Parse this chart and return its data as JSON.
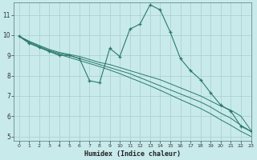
{
  "xlabel": "Humidex (Indice chaleur)",
  "background_color": "#c8eaeb",
  "grid_color": "#a8cece",
  "line_color": "#2a7a6a",
  "xlim": [
    -0.5,
    23
  ],
  "ylim": [
    4.8,
    11.6
  ],
  "yticks": [
    5,
    6,
    7,
    8,
    9,
    10,
    11
  ],
  "xticks": [
    0,
    1,
    2,
    3,
    4,
    5,
    6,
    7,
    8,
    9,
    10,
    11,
    12,
    13,
    14,
    15,
    16,
    17,
    18,
    19,
    20,
    21,
    22,
    23
  ],
  "series_main": {
    "x": [
      0,
      1,
      2,
      3,
      4,
      5,
      6,
      7,
      8,
      9,
      10,
      11,
      12,
      13,
      14,
      15,
      16,
      17,
      18,
      19,
      20,
      21,
      22,
      23
    ],
    "y": [
      9.95,
      9.6,
      9.4,
      9.2,
      9.0,
      9.0,
      8.85,
      7.75,
      7.65,
      9.35,
      8.95,
      10.3,
      10.55,
      11.5,
      11.25,
      10.15,
      8.85,
      8.25,
      7.8,
      7.15,
      6.55,
      6.25,
      5.5,
      5.25
    ]
  },
  "series_smooth": [
    {
      "x": [
        0,
        1,
        2,
        3,
        4,
        5,
        6,
        7,
        8,
        9,
        10,
        11,
        12,
        13,
        14,
        15,
        16,
        17,
        18,
        19,
        20,
        21,
        22,
        23
      ],
      "y": [
        9.95,
        9.7,
        9.5,
        9.3,
        9.15,
        9.05,
        8.95,
        8.8,
        8.65,
        8.55,
        8.4,
        8.25,
        8.1,
        7.95,
        7.8,
        7.6,
        7.4,
        7.2,
        7.0,
        6.75,
        6.5,
        6.3,
        6.0,
        5.3
      ]
    },
    {
      "x": [
        0,
        1,
        2,
        3,
        4,
        5,
        6,
        7,
        8,
        9,
        10,
        11,
        12,
        13,
        14,
        15,
        16,
        17,
        18,
        19,
        20,
        21,
        22,
        23
      ],
      "y": [
        9.95,
        9.7,
        9.45,
        9.25,
        9.1,
        9.0,
        8.85,
        8.7,
        8.55,
        8.4,
        8.25,
        8.1,
        7.9,
        7.7,
        7.5,
        7.3,
        7.1,
        6.9,
        6.7,
        6.45,
        6.15,
        5.9,
        5.55,
        5.25
      ]
    },
    {
      "x": [
        0,
        1,
        2,
        3,
        4,
        5,
        6,
        7,
        8,
        9,
        10,
        11,
        12,
        13,
        14,
        15,
        16,
        17,
        18,
        19,
        20,
        21,
        22,
        23
      ],
      "y": [
        9.95,
        9.65,
        9.4,
        9.2,
        9.05,
        8.9,
        8.75,
        8.6,
        8.45,
        8.28,
        8.1,
        7.9,
        7.7,
        7.5,
        7.28,
        7.05,
        6.82,
        6.6,
        6.38,
        6.12,
        5.82,
        5.55,
        5.25,
        5.0
      ]
    }
  ]
}
